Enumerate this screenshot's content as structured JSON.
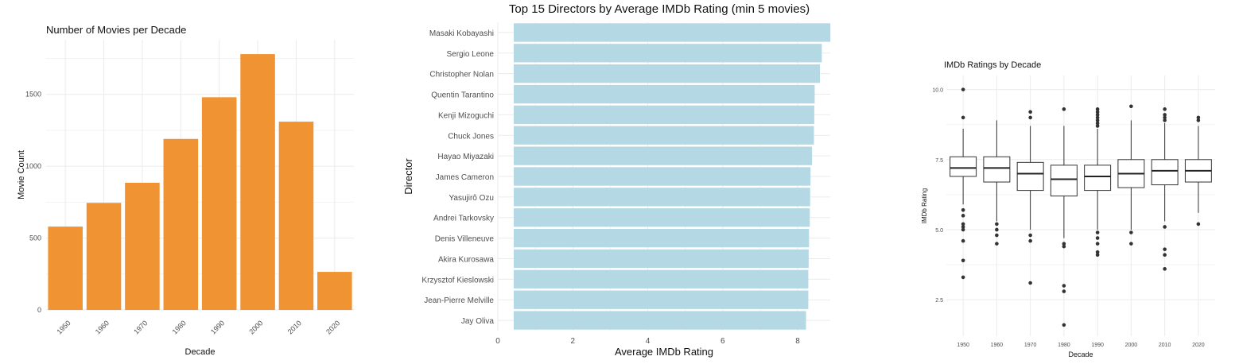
{
  "chart_data": [
    {
      "type": "bar",
      "title": "Number of Movies per Decade",
      "xlabel": "Decade",
      "ylabel": "Movie Count",
      "categories": [
        "1950",
        "1960",
        "1970",
        "1980",
        "1990",
        "2000",
        "2010",
        "2020"
      ],
      "values": [
        580,
        745,
        885,
        1190,
        1480,
        1780,
        1310,
        265
      ],
      "ylim": [
        0,
        1880
      ],
      "yticks": [
        "0",
        "500",
        "1000",
        "1500"
      ],
      "bar_color": "#f09433",
      "grid": true
    },
    {
      "type": "bar",
      "orientation": "horizontal",
      "title": "Top 15 Directors by Average IMDb Rating (min 5 movies)",
      "xlabel": "Average IMDb Rating",
      "ylabel": "Director",
      "categories": [
        "Masaki Kobayashi",
        "Sergio Leone",
        "Christopher Nolan",
        "Quentin Tarantino",
        "Kenji Mizoguchi",
        "Chuck Jones",
        "Hayao Miyazaki",
        "James Cameron",
        "Yasujirô Ozu",
        "Andrei Tarkovsky",
        "Denis Villeneuve",
        "Akira Kurosawa",
        "Krzysztof Kieslowski",
        "Jean-Pierre Melville",
        "Jay Oliva"
      ],
      "values": [
        8.45,
        8.22,
        8.17,
        8.03,
        8.02,
        8.01,
        7.96,
        7.92,
        7.91,
        7.9,
        7.88,
        7.87,
        7.86,
        7.86,
        7.8
      ],
      "xlim": [
        0,
        8.87
      ],
      "xticks": [
        "0",
        "2",
        "4",
        "6",
        "8"
      ],
      "bar_color": "#b5d8e5",
      "grid": true
    },
    {
      "type": "box",
      "title": "IMDb Ratings by Decade",
      "xlabel": "Decade",
      "ylabel": "IMDb Rating",
      "categories": [
        "1950",
        "1960",
        "1970",
        "1980",
        "1990",
        "2000",
        "2010",
        "2020"
      ],
      "ylim": [
        1.2,
        10.5
      ],
      "yticks": [
        "2.5",
        "5.0",
        "7.5",
        "10.0"
      ],
      "boxes": [
        {
          "q1": 6.9,
          "median": 7.2,
          "q3": 7.6,
          "whisker_low": 5.9,
          "whisker_high": 8.6,
          "outliers": [
            10.0,
            9.0,
            5.7,
            5.5,
            5.2,
            5.1,
            5.0,
            4.6,
            3.9,
            3.3
          ]
        },
        {
          "q1": 6.7,
          "median": 7.2,
          "q3": 7.6,
          "whisker_low": 5.3,
          "whisker_high": 8.9,
          "outliers": [
            5.2,
            5.0,
            4.8,
            4.5
          ]
        },
        {
          "q1": 6.4,
          "median": 7.0,
          "q3": 7.4,
          "whisker_low": 5.0,
          "whisker_high": 8.7,
          "outliers": [
            9.2,
            9.0,
            4.8,
            4.6,
            3.1
          ]
        },
        {
          "q1": 6.2,
          "median": 6.8,
          "q3": 7.3,
          "whisker_low": 4.7,
          "whisker_high": 8.7,
          "outliers": [
            9.3,
            4.5,
            4.4,
            3.0,
            2.8,
            1.6
          ]
        },
        {
          "q1": 6.4,
          "median": 6.9,
          "q3": 7.3,
          "whisker_low": 5.0,
          "whisker_high": 8.6,
          "outliers": [
            9.3,
            9.2,
            9.1,
            9.0,
            8.9,
            8.8,
            8.7,
            4.9,
            4.7,
            4.5,
            4.2,
            4.1
          ]
        },
        {
          "q1": 6.5,
          "median": 7.0,
          "q3": 7.5,
          "whisker_low": 5.0,
          "whisker_high": 8.9,
          "outliers": [
            9.4,
            4.9,
            4.5
          ]
        },
        {
          "q1": 6.6,
          "median": 7.1,
          "q3": 7.5,
          "whisker_low": 5.3,
          "whisker_high": 8.8,
          "outliers": [
            9.3,
            9.1,
            9.0,
            8.9,
            5.1,
            4.3,
            4.1,
            3.6
          ]
        },
        {
          "q1": 6.7,
          "median": 7.1,
          "q3": 7.5,
          "whisker_low": 5.6,
          "whisker_high": 8.7,
          "outliers": [
            9.0,
            8.9,
            5.2
          ]
        }
      ],
      "grid": true
    }
  ]
}
